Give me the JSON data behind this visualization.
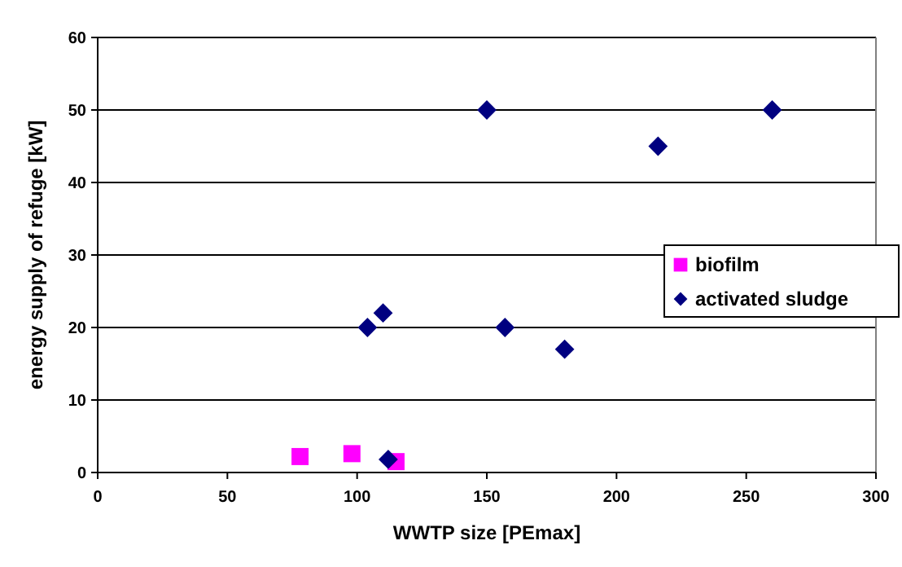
{
  "chart_data": {
    "type": "scatter",
    "xlabel": "WWTP size [PEmax]",
    "ylabel": "energy supply of refuge [kW]",
    "xlim": [
      0,
      300
    ],
    "xticks": [
      0,
      50,
      100,
      150,
      200,
      250,
      300
    ],
    "ylim": [
      0,
      60
    ],
    "yticks": [
      0,
      10,
      20,
      30,
      40,
      50,
      60
    ],
    "grid": "y",
    "legend": "right",
    "series": [
      {
        "name": "biofilm",
        "color": "#ff00ff",
        "marker": "square",
        "x": [
          78,
          98,
          115
        ],
        "values": [
          2.2,
          2.6,
          1.5
        ]
      },
      {
        "name": "activated sludge",
        "color": "#000080",
        "marker": "diamond",
        "x": [
          104,
          110,
          112,
          150,
          157,
          180,
          216,
          260
        ],
        "values": [
          20,
          22,
          1.8,
          50,
          20,
          17,
          45,
          50
        ]
      }
    ]
  }
}
